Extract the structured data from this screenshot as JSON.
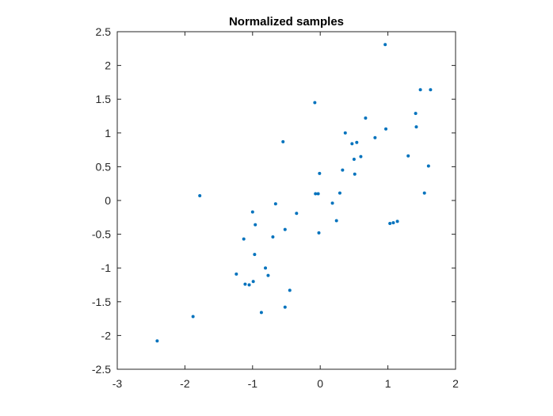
{
  "chart_data": {
    "type": "scatter",
    "title": "Normalized samples",
    "xlabel": "",
    "ylabel": "",
    "xlim": [
      -3,
      2
    ],
    "ylim": [
      -2.5,
      2.5
    ],
    "xticks": [
      -3,
      -2,
      -1,
      0,
      1,
      2
    ],
    "xtick_labels": [
      "-3",
      "-2",
      "-1",
      "0",
      "1",
      "2"
    ],
    "yticks": [
      -2.5,
      -2,
      -1.5,
      -1,
      -0.5,
      0,
      0.5,
      1,
      1.5,
      2,
      2.5
    ],
    "ytick_labels": [
      "-2.5",
      "-2",
      "-1.5",
      "-1",
      "-0.5",
      "0",
      "0.5",
      "1",
      "1.5",
      "2",
      "2.5"
    ],
    "grid": false,
    "marker_color": "#0072BD",
    "points": [
      {
        "x": -2.41,
        "y": -2.08
      },
      {
        "x": -1.88,
        "y": -1.72
      },
      {
        "x": -1.78,
        "y": 0.07
      },
      {
        "x": -1.24,
        "y": -1.09
      },
      {
        "x": -1.13,
        "y": -0.57
      },
      {
        "x": -1.11,
        "y": -1.24
      },
      {
        "x": -1.05,
        "y": -1.25
      },
      {
        "x": -1.0,
        "y": -0.17
      },
      {
        "x": -0.99,
        "y": -1.2
      },
      {
        "x": -0.97,
        "y": -0.8
      },
      {
        "x": -0.96,
        "y": -0.36
      },
      {
        "x": -0.87,
        "y": -1.66
      },
      {
        "x": -0.81,
        "y": -1.0
      },
      {
        "x": -0.77,
        "y": -1.11
      },
      {
        "x": -0.7,
        "y": -0.54
      },
      {
        "x": -0.66,
        "y": -0.05
      },
      {
        "x": -0.55,
        "y": 0.87
      },
      {
        "x": -0.52,
        "y": -0.43
      },
      {
        "x": -0.52,
        "y": -1.58
      },
      {
        "x": -0.45,
        "y": -1.33
      },
      {
        "x": -0.35,
        "y": -0.19
      },
      {
        "x": -0.08,
        "y": 1.45
      },
      {
        "x": -0.07,
        "y": 0.1
      },
      {
        "x": -0.03,
        "y": 0.1
      },
      {
        "x": -0.02,
        "y": -0.48
      },
      {
        "x": -0.01,
        "y": 0.4
      },
      {
        "x": 0.18,
        "y": -0.04
      },
      {
        "x": 0.24,
        "y": -0.3
      },
      {
        "x": 0.29,
        "y": 0.11
      },
      {
        "x": 0.33,
        "y": 0.45
      },
      {
        "x": 0.37,
        "y": 1.0
      },
      {
        "x": 0.47,
        "y": 0.84
      },
      {
        "x": 0.5,
        "y": 0.61
      },
      {
        "x": 0.51,
        "y": 0.39
      },
      {
        "x": 0.54,
        "y": 0.86
      },
      {
        "x": 0.6,
        "y": 0.65
      },
      {
        "x": 0.67,
        "y": 1.22
      },
      {
        "x": 0.81,
        "y": 0.93
      },
      {
        "x": 0.96,
        "y": 2.31
      },
      {
        "x": 0.97,
        "y": 1.06
      },
      {
        "x": 1.03,
        "y": -0.34
      },
      {
        "x": 1.08,
        "y": -0.33
      },
      {
        "x": 1.14,
        "y": -0.31
      },
      {
        "x": 1.3,
        "y": 0.66
      },
      {
        "x": 1.41,
        "y": 1.29
      },
      {
        "x": 1.42,
        "y": 1.09
      },
      {
        "x": 1.48,
        "y": 1.64
      },
      {
        "x": 1.54,
        "y": 0.11
      },
      {
        "x": 1.6,
        "y": 0.51
      },
      {
        "x": 1.63,
        "y": 1.64
      }
    ]
  }
}
